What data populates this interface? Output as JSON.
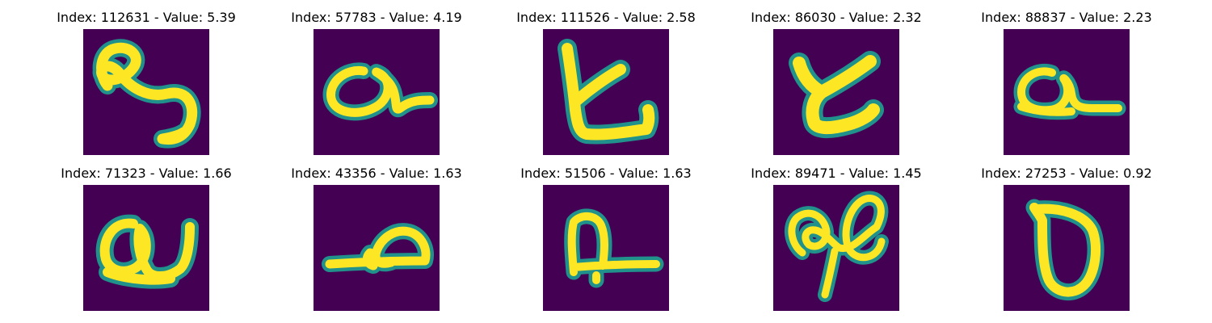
{
  "colors": {
    "background": "#440154",
    "stroke_core": "#fde725",
    "stroke_edge": "#21918c"
  },
  "panels": [
    {
      "title": "Index: 112631 - Value: 5.39",
      "glyph": "glyph-1"
    },
    {
      "title": "Index: 57783 - Value: 4.19",
      "glyph": "glyph-2"
    },
    {
      "title": "Index: 111526 - Value: 2.58",
      "glyph": "glyph-3"
    },
    {
      "title": "Index: 86030 - Value: 2.32",
      "glyph": "glyph-4"
    },
    {
      "title": "Index: 88837 - Value: 2.23",
      "glyph": "glyph-5"
    },
    {
      "title": "Index: 71323 - Value: 1.66",
      "glyph": "glyph-6"
    },
    {
      "title": "Index: 43356 - Value: 1.63",
      "glyph": "glyph-7"
    },
    {
      "title": "Index: 51506 - Value: 1.63",
      "glyph": "glyph-8"
    },
    {
      "title": "Index: 89471 - Value: 1.45",
      "glyph": "glyph-9"
    },
    {
      "title": "Index: 27253 - Value: 0.92",
      "glyph": "glyph-10"
    }
  ]
}
